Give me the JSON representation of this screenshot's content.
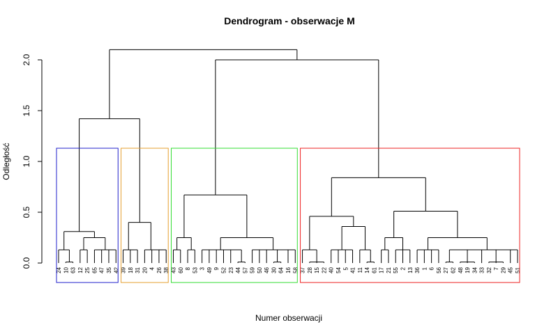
{
  "chart_data": {
    "type": "dendrogram",
    "title": "Dendrogram  - obserwacje M",
    "xlabel": "Numer obserwacji",
    "ylabel": "Odległość",
    "ylim": [
      0,
      2.0
    ],
    "yticks": [
      {
        "value": 0,
        "label": "0.0"
      },
      {
        "value": 0.5,
        "label": "0.5"
      },
      {
        "value": 1.0,
        "label": "1.0"
      },
      {
        "value": 1.5,
        "label": "1.5"
      },
      {
        "value": 2.0,
        "label": "2.0"
      }
    ],
    "cut_height": 1.13,
    "cluster_colors": [
      "#2222cc",
      "#e6a030",
      "#33dd33",
      "#ee2222"
    ],
    "tree": {
      "height": 2.1,
      "children": [
        {
          "height": 1.42,
          "children": [
            {
              "height": 0.31,
              "children": [
                {
                  "height": 0.13,
                  "children": [
                    "24",
                    {
                      "height": 0.01,
                      "children": [
                        "10",
                        "63"
                      ]
                    }
                  ]
                },
                {
                  "height": 0.25,
                  "children": [
                    {
                      "height": 0.13,
                      "children": [
                        "12",
                        "25"
                      ]
                    },
                    {
                      "height": 0.13,
                      "children": [
                        {
                          "height": 0.13,
                          "children": [
                            "65",
                            "47"
                          ]
                        },
                        {
                          "height": 0.13,
                          "children": [
                            "35",
                            "42"
                          ]
                        }
                      ]
                    }
                  ]
                }
              ]
            },
            {
              "height": 0.4,
              "children": [
                {
                  "height": 0.13,
                  "children": [
                    "39",
                    {
                      "height": 0.13,
                      "children": [
                        "18",
                        "31"
                      ]
                    }
                  ]
                },
                {
                  "height": 0.13,
                  "children": [
                    "20",
                    {
                      "height": 0.13,
                      "children": [
                        "4",
                        {
                          "height": 0.13,
                          "children": [
                            "26",
                            "38"
                          ]
                        }
                      ]
                    }
                  ]
                }
              ]
            }
          ]
        },
        {
          "height": 2.0,
          "children": [
            {
              "height": 0.67,
              "children": [
                {
                  "height": 0.25,
                  "children": [
                    {
                      "height": 0.13,
                      "children": [
                        "43",
                        "60"
                      ]
                    },
                    {
                      "height": 0.13,
                      "children": [
                        "8",
                        "53"
                      ]
                    }
                  ]
                },
                {
                  "height": 0.25,
                  "children": [
                    {
                      "height": 0.13,
                      "children": [
                        "3",
                        "49",
                        "9",
                        "52",
                        "23",
                        {
                          "height": 0.01,
                          "children": [
                            "44",
                            "57"
                          ]
                        }
                      ]
                    },
                    {
                      "height": 0.13,
                      "children": [
                        "59",
                        "50",
                        "46",
                        {
                          "height": 0.01,
                          "children": [
                            "30",
                            "64"
                          ]
                        },
                        "16",
                        "58"
                      ]
                    }
                  ]
                }
              ]
            },
            {
              "height": 0.84,
              "children": [
                {
                  "height": 0.46,
                  "children": [
                    {
                      "height": 0.13,
                      "children": [
                        "37",
                        {
                          "height": 0.01,
                          "children": [
                            "28",
                            "15",
                            "22"
                          ]
                        }
                      ]
                    },
                    {
                      "height": 0.36,
                      "children": [
                        {
                          "height": 0.13,
                          "children": [
                            "40",
                            "54",
                            "5",
                            "41"
                          ]
                        },
                        {
                          "height": 0.13,
                          "children": [
                            "11",
                            {
                              "height": 0.01,
                              "children": [
                                "14",
                                "61"
                              ]
                            }
                          ]
                        }
                      ]
                    }
                  ]
                },
                {
                  "height": 0.51,
                  "children": [
                    {
                      "height": 0.25,
                      "children": [
                        {
                          "height": 0.13,
                          "children": [
                            "17",
                            "21"
                          ]
                        },
                        {
                          "height": 0.13,
                          "children": [
                            "55",
                            "2",
                            "13"
                          ]
                        }
                      ]
                    },
                    {
                      "height": 0.25,
                      "children": [
                        {
                          "height": 0.13,
                          "children": [
                            "36",
                            "1",
                            "6",
                            "56"
                          ]
                        },
                        {
                          "height": 0.13,
                          "children": [
                            {
                              "height": 0.01,
                              "children": [
                                "27",
                                "62"
                              ]
                            },
                            {
                              "height": 0.01,
                              "children": [
                                "48",
                                "19",
                                "34"
                              ]
                            },
                            "33",
                            {
                              "height": 0.01,
                              "children": [
                                "32",
                                "7",
                                "29"
                              ]
                            },
                            "45",
                            "51"
                          ]
                        }
                      ]
                    }
                  ]
                }
              ]
            }
          ]
        }
      ]
    }
  }
}
